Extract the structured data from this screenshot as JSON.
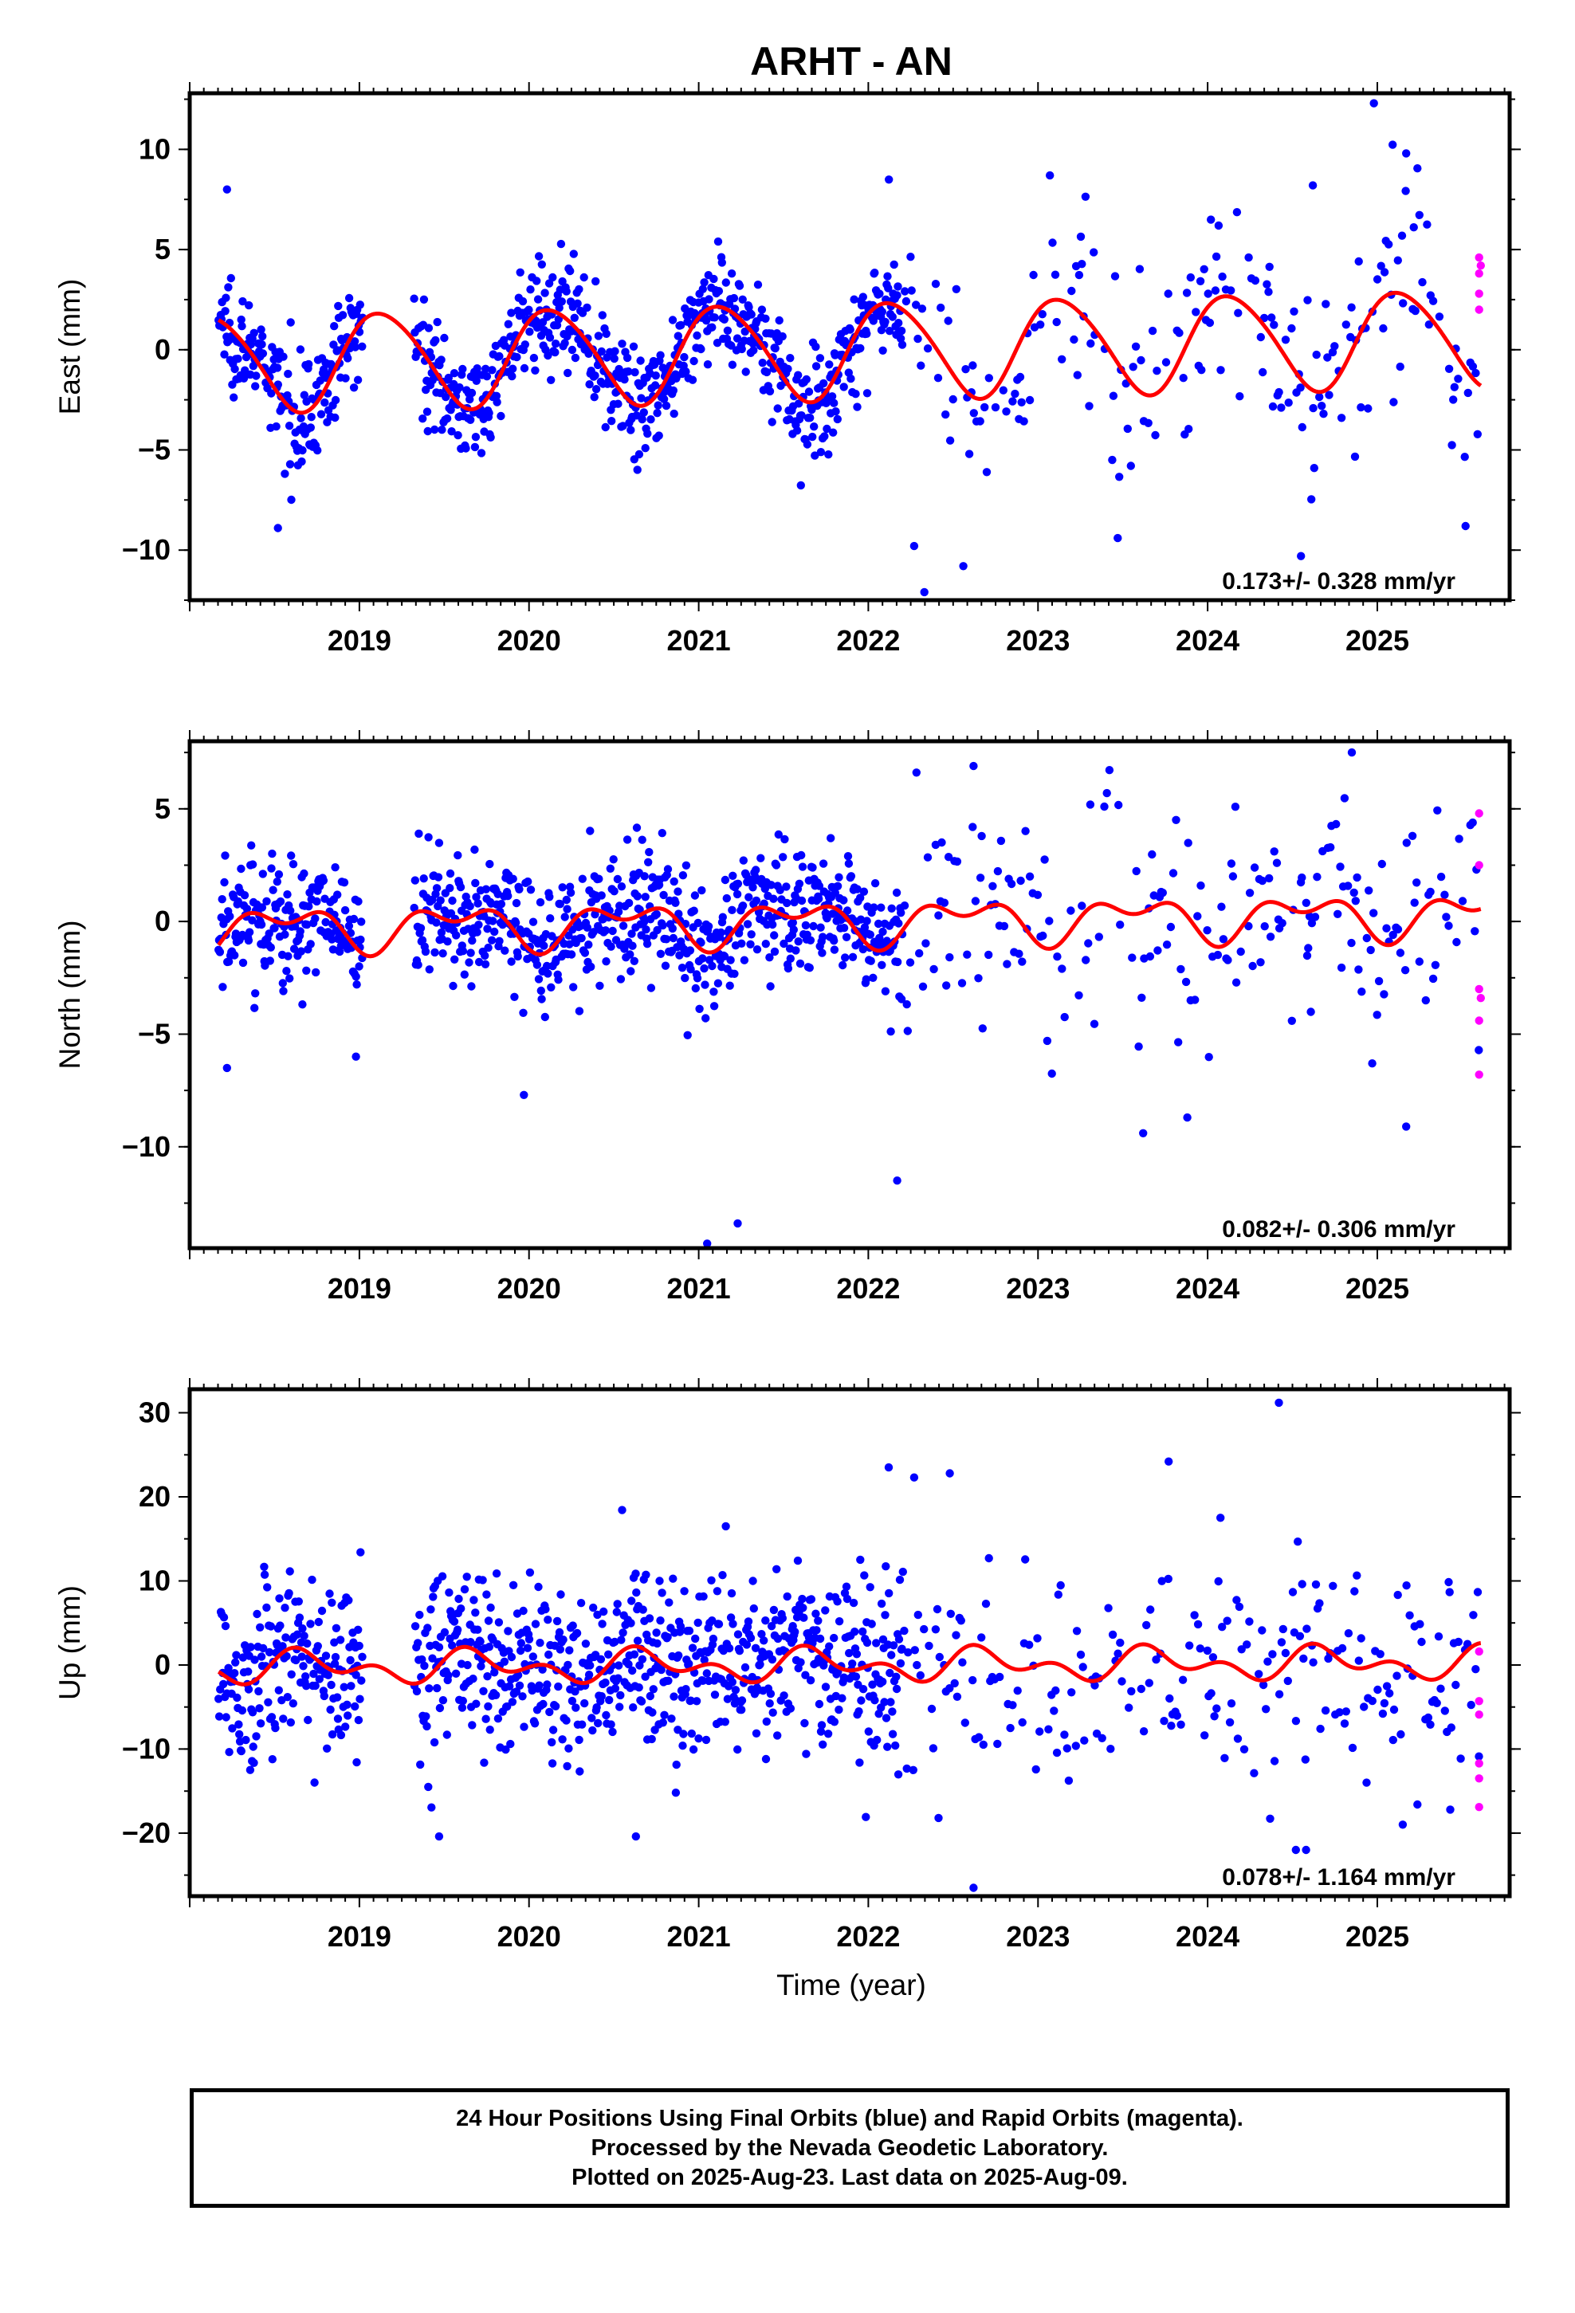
{
  "title": "ARHT - AN",
  "xlabel": "Time (year)",
  "colors": {
    "final_orbits": "#0000ff",
    "rapid_orbits": "#ff00ff",
    "model_fit": "#ff0000",
    "frame": "#000000"
  },
  "caption": {
    "line1": "24 Hour Positions Using Final Orbits (blue) and Rapid Orbits (magenta).",
    "line2": "Processed by the Nevada Geodetic Laboratory.",
    "line3": "Plotted on 2025-Aug-23. Last data on 2025-Aug-09."
  },
  "chart_data": [
    {
      "type": "scatter",
      "component": "East",
      "ylabel": "East (mm)",
      "velocity_label": "0.173+/- 0.328 mm/yr",
      "xlim": [
        2018.0,
        2025.78
      ],
      "ylim": [
        -12.5,
        12.8
      ],
      "xticks": [
        2019,
        2020,
        2021,
        2022,
        2023,
        2024,
        2025
      ],
      "yticks": [
        -10,
        -5,
        0,
        5,
        10
      ],
      "grid": false,
      "data_span": [
        2018.17,
        2025.61
      ],
      "model": {
        "annual_amplitude": 2.4,
        "annual_phase": 0.7,
        "semiannual_amplitude": 0.25,
        "semiannual_phase": 2.0,
        "trend_mm_per_yr": 0.173,
        "offset": 0.0
      },
      "scatter_sigma": 1.3,
      "density_sigma_late": 2.8,
      "outliers": [
        [
          2018.22,
          8.0
        ],
        [
          2018.52,
          -8.9
        ],
        [
          2022.33,
          -12.1
        ],
        [
          2022.27,
          -9.8
        ],
        [
          2022.56,
          -10.8
        ],
        [
          2023.07,
          8.7
        ],
        [
          2024.55,
          -10.3
        ],
        [
          2024.62,
          8.2
        ],
        [
          2024.98,
          12.3
        ],
        [
          2025.17,
          9.8
        ],
        [
          2025.52,
          -8.8
        ],
        [
          2023.47,
          -9.4
        ]
      ],
      "rapid_points": [
        [
          2025.6,
          4.6
        ],
        [
          2025.6,
          3.8
        ],
        [
          2025.6,
          2.8
        ],
        [
          2025.6,
          2.0
        ],
        [
          2025.61,
          4.2
        ]
      ]
    },
    {
      "type": "scatter",
      "component": "North",
      "ylabel": "North (mm)",
      "velocity_label": "0.082+/- 0.306 mm/yr",
      "xlim": [
        2018.0,
        2025.78
      ],
      "ylim": [
        -14.5,
        8.0
      ],
      "xticks": [
        2019,
        2020,
        2021,
        2022,
        2023,
        2024,
        2025
      ],
      "yticks": [
        -10,
        -5,
        0,
        5
      ],
      "grid": false,
      "data_span": [
        2018.17,
        2025.61
      ],
      "model": {
        "annual_amplitude": 0.75,
        "annual_phase": 4.3,
        "semiannual_amplitude": 0.55,
        "semiannual_phase": 3.9,
        "trend_mm_per_yr": 0.082,
        "offset": 0.0
      },
      "scatter_sigma": 1.4,
      "density_sigma_late": 2.6,
      "outliers": [
        [
          2018.22,
          -6.5
        ],
        [
          2018.98,
          -6.0
        ],
        [
          2019.97,
          -7.7
        ],
        [
          2021.05,
          -14.3
        ],
        [
          2021.23,
          -13.4
        ],
        [
          2022.17,
          -11.5
        ],
        [
          2022.62,
          6.9
        ],
        [
          2023.62,
          -9.4
        ],
        [
          2023.88,
          -8.7
        ],
        [
          2024.85,
          7.5
        ],
        [
          2025.17,
          -9.1
        ],
        [
          2024.97,
          -6.3
        ]
      ],
      "rapid_points": [
        [
          2025.6,
          4.8
        ],
        [
          2025.6,
          2.5
        ],
        [
          2025.6,
          -3.0
        ],
        [
          2025.6,
          -4.4
        ],
        [
          2025.6,
          -6.8
        ],
        [
          2025.61,
          -3.4
        ]
      ]
    },
    {
      "type": "scatter",
      "component": "Up",
      "ylabel": "Up (mm)",
      "velocity_label": "0.078+/- 1.164 mm/yr",
      "xlim": [
        2018.0,
        2025.78
      ],
      "ylim": [
        -27.5,
        32.8
      ],
      "xticks": [
        2019,
        2020,
        2021,
        2022,
        2023,
        2024,
        2025
      ],
      "yticks": [
        -20,
        -10,
        0,
        10,
        20,
        30
      ],
      "grid": false,
      "data_span": [
        2018.17,
        2025.61
      ],
      "model": {
        "annual_amplitude": 1.3,
        "annual_phase": 3.5,
        "semiannual_amplitude": 1.2,
        "semiannual_phase": 0.3,
        "trend_mm_per_yr": 0.078,
        "offset": 0.0
      },
      "scatter_sigma": 5.2,
      "density_sigma_late": 6.5,
      "outliers": [
        [
          2022.12,
          23.5
        ],
        [
          2022.27,
          22.3
        ],
        [
          2022.48,
          22.8
        ],
        [
          2022.62,
          -26.5
        ],
        [
          2023.77,
          24.2
        ],
        [
          2024.42,
          31.2
        ],
        [
          2019.47,
          -20.4
        ],
        [
          2020.63,
          -20.4
        ],
        [
          2024.52,
          -22.0
        ],
        [
          2024.58,
          -22.0
        ],
        [
          2025.43,
          -17.2
        ],
        [
          2025.15,
          -19.0
        ]
      ],
      "rapid_points": [
        [
          2025.6,
          1.6
        ],
        [
          2025.6,
          -4.3
        ],
        [
          2025.6,
          -5.9
        ],
        [
          2025.6,
          -11.7
        ],
        [
          2025.6,
          -13.5
        ],
        [
          2025.6,
          -16.9
        ]
      ]
    }
  ]
}
